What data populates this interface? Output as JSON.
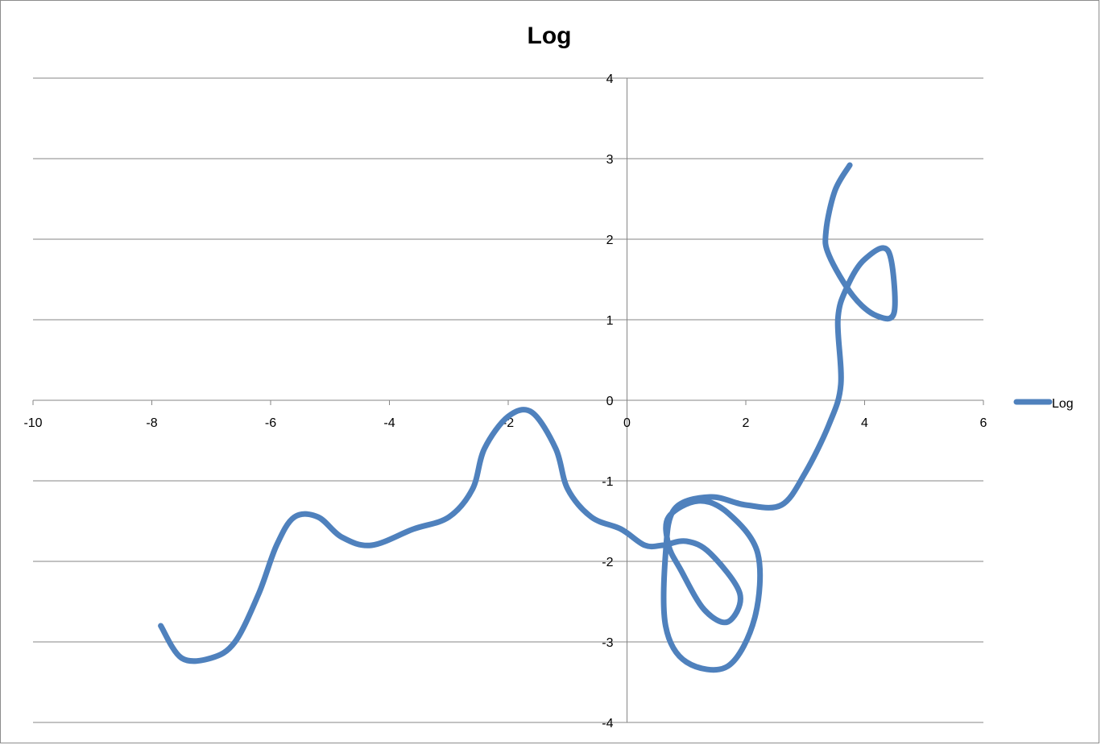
{
  "chart_data": {
    "type": "scatter",
    "title": "Log",
    "xlabel": "",
    "ylabel": "",
    "xlim": [
      -10,
      6
    ],
    "ylim": [
      -4,
      4
    ],
    "x_ticks": [
      -10,
      -8,
      -6,
      -4,
      -2,
      0,
      2,
      4,
      6
    ],
    "y_ticks": [
      4,
      3,
      2,
      1,
      0,
      -1,
      -2,
      -3,
      -4
    ],
    "grid": "horizontal",
    "legend": "right",
    "series_color": "#4F81BD",
    "series": [
      {
        "name": "Log",
        "smooth": true,
        "points": [
          [
            -7.85,
            -2.8
          ],
          [
            -7.5,
            -3.2
          ],
          [
            -7.0,
            -3.2
          ],
          [
            -6.6,
            -3.0
          ],
          [
            -6.2,
            -2.4
          ],
          [
            -5.9,
            -1.8
          ],
          [
            -5.6,
            -1.45
          ],
          [
            -5.2,
            -1.45
          ],
          [
            -4.8,
            -1.7
          ],
          [
            -4.3,
            -1.8
          ],
          [
            -3.6,
            -1.6
          ],
          [
            -3.0,
            -1.45
          ],
          [
            -2.6,
            -1.1
          ],
          [
            -2.4,
            -0.6
          ],
          [
            -2.0,
            -0.2
          ],
          [
            -1.6,
            -0.15
          ],
          [
            -1.2,
            -0.6
          ],
          [
            -1.0,
            -1.1
          ],
          [
            -0.6,
            -1.45
          ],
          [
            -0.1,
            -1.6
          ],
          [
            0.3,
            -1.8
          ],
          [
            0.6,
            -1.8
          ],
          [
            1.0,
            -1.75
          ],
          [
            1.4,
            -1.9
          ],
          [
            1.9,
            -2.4
          ],
          [
            1.7,
            -2.75
          ],
          [
            1.3,
            -2.6
          ],
          [
            0.9,
            -2.1
          ],
          [
            0.7,
            -1.8
          ],
          [
            0.7,
            -1.45
          ],
          [
            1.2,
            -1.25
          ],
          [
            1.7,
            -1.4
          ],
          [
            2.2,
            -1.9
          ],
          [
            2.15,
            -2.7
          ],
          [
            1.7,
            -3.3
          ],
          [
            1.0,
            -3.25
          ],
          [
            0.65,
            -2.8
          ],
          [
            0.65,
            -1.9
          ],
          [
            0.8,
            -1.35
          ],
          [
            1.4,
            -1.2
          ],
          [
            2.0,
            -1.3
          ],
          [
            2.6,
            -1.3
          ],
          [
            3.0,
            -0.9
          ],
          [
            3.4,
            -0.3
          ],
          [
            3.6,
            0.2
          ],
          [
            3.55,
            1.0
          ],
          [
            3.7,
            1.4
          ],
          [
            4.0,
            1.75
          ],
          [
            4.4,
            1.85
          ],
          [
            4.5,
            1.1
          ],
          [
            4.2,
            1.05
          ],
          [
            3.8,
            1.3
          ],
          [
            3.4,
            1.8
          ],
          [
            3.35,
            2.1
          ],
          [
            3.5,
            2.6
          ],
          [
            3.75,
            2.92
          ]
        ]
      }
    ]
  }
}
